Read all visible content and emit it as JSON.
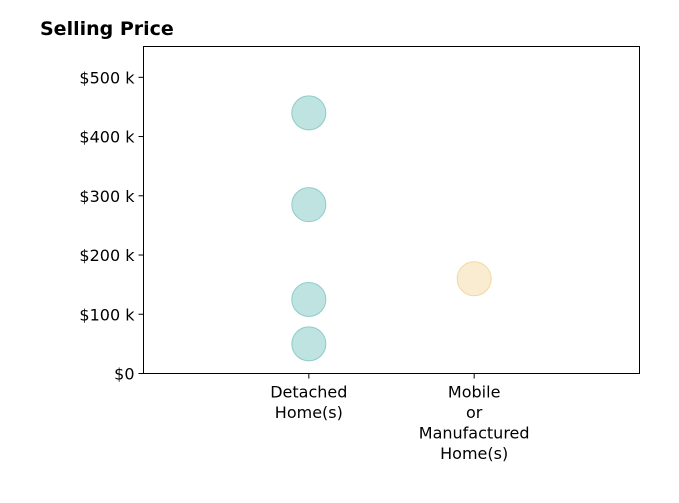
{
  "chart_data": {
    "type": "scatter",
    "title": "Selling Price",
    "xlabel": "",
    "ylabel": "",
    "categories": [
      [
        "Detached",
        "Home(s)"
      ],
      [
        "Mobile",
        "or",
        "Manufactured",
        "Home(s)"
      ]
    ],
    "series": [
      {
        "category_index": 0,
        "color": "#a8dad6",
        "stroke": "#8ccdc7",
        "values": [
          440000,
          285000,
          125000,
          50000
        ]
      },
      {
        "category_index": 1,
        "color": "#f8e6c2",
        "stroke": "#f0d8a8",
        "values": [
          160000
        ]
      }
    ],
    "yticks": [
      {
        "value": 0,
        "label": "$0"
      },
      {
        "value": 100000,
        "label": "$100 k"
      },
      {
        "value": 200000,
        "label": "$200 k"
      },
      {
        "value": 300000,
        "label": "$300 k"
      },
      {
        "value": 400000,
        "label": "$400 k"
      },
      {
        "value": 500000,
        "label": "$500 k"
      }
    ],
    "ylim": [
      0,
      552000
    ],
    "xlim": [
      -1,
      2
    ],
    "grid": false,
    "legend": "none"
  }
}
